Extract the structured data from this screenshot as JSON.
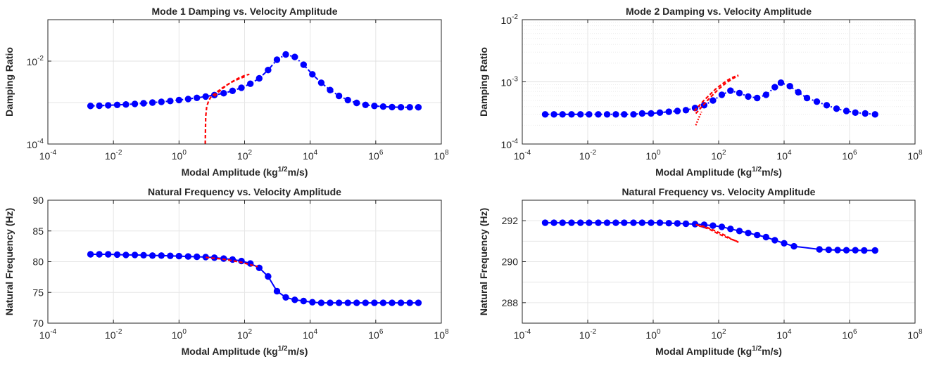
{
  "chart_data": [
    {
      "type": "line",
      "title": "Mode 1 Damping vs. Velocity Amplitude",
      "xlabel": {
        "main": "Modal Amplitude (kg",
        "sup": "1/2",
        "tail": "m/s)"
      },
      "ylabel": "Damping Ratio",
      "xscale": "log",
      "yscale": "log",
      "xlim_exp": [
        -4,
        8
      ],
      "ylim_exp": [
        -4,
        -1
      ],
      "x_ticks_exp": [
        -4,
        -2,
        0,
        2,
        4,
        6,
        8
      ],
      "y_ticks_exp": [
        -4,
        -2
      ],
      "grid": true,
      "series": [
        {
          "color": "#0000ff",
          "style": "dash-dot",
          "marker": "circle",
          "x": [
            0.002,
            0.0037,
            0.0069,
            0.013,
            0.024,
            0.045,
            0.083,
            0.155,
            0.29,
            0.54,
            1.0,
            1.9,
            3.5,
            6.5,
            12,
            23,
            43,
            80,
            150,
            280,
            520,
            970,
            1800,
            3400,
            6300,
            11700,
            21800,
            40600,
            75600,
            141000,
            262000,
            488000,
            908000,
            1690000,
            3150000,
            5860000,
            10900000,
            20000000
          ],
          "y": [
            0.00083,
            0.00084,
            0.00086,
            0.00088,
            0.0009,
            0.00093,
            0.00096,
            0.001,
            0.00104,
            0.00109,
            0.00115,
            0.00122,
            0.0013,
            0.0014,
            0.00152,
            0.00168,
            0.00192,
            0.00228,
            0.00285,
            0.00385,
            0.0061,
            0.0108,
            0.0145,
            0.0126,
            0.0082,
            0.0048,
            0.003,
            0.002,
            0.00145,
            0.00115,
            0.00098,
            0.00088,
            0.00083,
            0.0008,
            0.00078,
            0.00077,
            0.00077,
            0.00077
          ]
        },
        {
          "color": "#ff0000",
          "style": "dashed",
          "marker": "none",
          "x": [
            6.3,
            6.5,
            7,
            8,
            9,
            10,
            12,
            15,
            20,
            28,
            40,
            60,
            100
          ],
          "y": [
            0.0001,
            0.00045,
            0.0008,
            0.0011,
            0.0013,
            0.00145,
            0.0016,
            0.00185,
            0.0022,
            0.0026,
            0.0031,
            0.0036,
            0.0042
          ]
        },
        {
          "color": "#ff0000",
          "style": "dashed",
          "marker": "none",
          "x": [
            12,
            15,
            20,
            30,
            45,
            70,
            100,
            140
          ],
          "y": [
            0.0014,
            0.0017,
            0.0021,
            0.0027,
            0.0033,
            0.004,
            0.0045,
            0.0048
          ]
        }
      ]
    },
    {
      "type": "line",
      "title": "Mode 2 Damping vs. Velocity Amplitude",
      "xlabel": {
        "main": "Modal Amplitude (kg",
        "sup": "1/2",
        "tail": "m/s)"
      },
      "ylabel": "Damping Ratio",
      "xscale": "log",
      "yscale": "log",
      "xlim_exp": [
        -4,
        8
      ],
      "ylim_exp": [
        -4,
        -2
      ],
      "x_ticks_exp": [
        -4,
        -2,
        0,
        2,
        4,
        6,
        8
      ],
      "y_ticks_exp": [
        -4,
        -3,
        -2
      ],
      "grid": true,
      "series": [
        {
          "color": "#0000ff",
          "style": "dash-dot",
          "marker": "circle",
          "x": [
            0.0005,
            0.00093,
            0.0017,
            0.0032,
            0.006,
            0.011,
            0.021,
            0.039,
            0.072,
            0.13,
            0.25,
            0.46,
            0.86,
            1.6,
            3.0,
            5.5,
            10,
            19,
            36,
            67,
            125,
            230,
            430,
            800,
            1500,
            2800,
            5200,
            8000,
            15000,
            27000,
            50000,
            100000,
            200000,
            400000,
            800000,
            1500000,
            3000000,
            6000000
          ],
          "y": [
            0.0003,
            0.0003,
            0.0003,
            0.0003,
            0.0003,
            0.0003,
            0.0003,
            0.0003,
            0.0003,
            0.0003,
            0.0003,
            0.00031,
            0.00031,
            0.00032,
            0.00033,
            0.00034,
            0.00035,
            0.00038,
            0.00042,
            0.0005,
            0.00062,
            0.00072,
            0.00066,
            0.00058,
            0.00055,
            0.00062,
            0.00082,
            0.00097,
            0.00085,
            0.00068,
            0.00055,
            0.00048,
            0.00042,
            0.00037,
            0.00034,
            0.00032,
            0.00031,
            0.0003
          ]
        },
        {
          "color": "#ff0000",
          "style": "dashed",
          "marker": "none",
          "x": [
            18,
            22,
            28,
            38,
            55,
            80,
            120,
            180,
            270,
            400
          ],
          "y": [
            0.00034,
            0.00038,
            0.00044,
            0.00052,
            0.00063,
            0.00076,
            0.0009,
            0.00105,
            0.00118,
            0.00128
          ]
        },
        {
          "color": "#ff0000",
          "style": "dashed",
          "marker": "none",
          "x": [
            20,
            26,
            35,
            50,
            75,
            110,
            170,
            260,
            400
          ],
          "y": [
            0.00031,
            0.00036,
            0.00043,
            0.00053,
            0.00066,
            0.0008,
            0.00096,
            0.00112,
            0.00125
          ]
        },
        {
          "color": "#ff0000",
          "style": "dotted",
          "marker": "none",
          "x": [
            20,
            23,
            26,
            30
          ],
          "y": [
            0.0002,
            0.00024,
            0.00028,
            0.00033
          ]
        }
      ]
    },
    {
      "type": "line",
      "title": "Natural Frequency vs. Velocity Amplitude",
      "xlabel": {
        "main": "Modal Amplitude (kg",
        "sup": "1/2",
        "tail": "m/s)"
      },
      "ylabel": "Natural Frequency (Hz)",
      "xscale": "log",
      "yscale": "linear",
      "xlim_exp": [
        -4,
        8
      ],
      "ylim": [
        70,
        90
      ],
      "x_ticks_exp": [
        -4,
        -2,
        0,
        2,
        4,
        6,
        8
      ],
      "y_ticks": [
        70,
        75,
        80,
        85,
        90
      ],
      "grid": true,
      "series": [
        {
          "color": "#0000ff",
          "style": "solid",
          "marker": "circle",
          "x": [
            0.002,
            0.0037,
            0.0069,
            0.013,
            0.024,
            0.045,
            0.083,
            0.155,
            0.29,
            0.54,
            1.0,
            1.9,
            3.5,
            6.5,
            12,
            23,
            43,
            80,
            150,
            280,
            520,
            970,
            1800,
            3400,
            6300,
            11700,
            21800,
            40600,
            75600,
            141000,
            262000,
            488000,
            908000,
            1690000,
            3150000,
            5860000,
            10900000,
            20000000
          ],
          "y": [
            81.2,
            81.2,
            81.2,
            81.15,
            81.1,
            81.1,
            81.05,
            81.0,
            81.0,
            80.95,
            80.9,
            80.85,
            80.8,
            80.75,
            80.65,
            80.5,
            80.35,
            80.1,
            79.7,
            79.0,
            77.6,
            75.2,
            74.2,
            73.8,
            73.6,
            73.4,
            73.3,
            73.3,
            73.3,
            73.3,
            73.3,
            73.3,
            73.3,
            73.3,
            73.3,
            73.3,
            73.3,
            73.3
          ]
        },
        {
          "color": "#ff0000",
          "style": "dashed",
          "marker": "none",
          "x": [
            6.5,
            10,
            20,
            40,
            80,
            150,
            250
          ],
          "y": [
            80.7,
            80.6,
            80.45,
            80.2,
            79.9,
            79.5,
            79.2
          ]
        }
      ]
    },
    {
      "type": "line",
      "title": "Natural Frequency vs. Velocity Amplitude",
      "xlabel": {
        "main": "Modal Amplitude (kg",
        "sup": "1/2",
        "tail": "m/s)"
      },
      "ylabel": "Natural Frequency (Hz)",
      "xscale": "log",
      "yscale": "linear",
      "xlim_exp": [
        -4,
        8
      ],
      "ylim": [
        287,
        293
      ],
      "x_ticks_exp": [
        -4,
        -2,
        0,
        2,
        4,
        6,
        8
      ],
      "y_ticks": [
        288,
        290,
        292
      ],
      "grid": true,
      "series": [
        {
          "color": "#0000ff",
          "style": "solid",
          "marker": "circle",
          "x": [
            0.0005,
            0.00093,
            0.0017,
            0.0032,
            0.006,
            0.011,
            0.021,
            0.039,
            0.072,
            0.13,
            0.25,
            0.46,
            0.86,
            1.6,
            3.0,
            5.5,
            10,
            19,
            36,
            67,
            125,
            230,
            430,
            800,
            1500,
            2800,
            5200,
            10000,
            20000,
            120000,
            230000,
            430000,
            800000,
            1500000,
            2800000,
            6000000
          ],
          "y": [
            291.9,
            291.9,
            291.9,
            291.9,
            291.9,
            291.9,
            291.9,
            291.9,
            291.9,
            291.9,
            291.9,
            291.9,
            291.9,
            291.9,
            291.88,
            291.87,
            291.85,
            291.83,
            291.8,
            291.76,
            291.7,
            291.6,
            291.5,
            291.4,
            291.3,
            291.2,
            291.05,
            290.9,
            290.75,
            290.6,
            290.58,
            290.57,
            290.56,
            290.56,
            290.55,
            290.55
          ]
        },
        {
          "color": "#ff0000",
          "style": "dashed",
          "marker": "none",
          "x": [
            20,
            40,
            80,
            150,
            250,
            400
          ],
          "y": [
            291.8,
            291.7,
            291.5,
            291.3,
            291.1,
            290.95
          ]
        },
        {
          "color": "#ff0000",
          "style": "dashed",
          "marker": "none",
          "x": [
            25,
            50,
            100,
            200,
            350,
            450
          ],
          "y": [
            291.75,
            291.6,
            291.35,
            291.15,
            291.0,
            290.9
          ]
        }
      ]
    }
  ]
}
